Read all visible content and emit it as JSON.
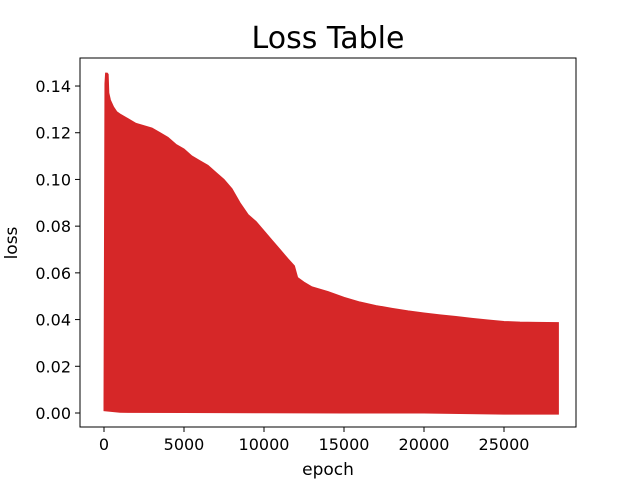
{
  "chart_data": {
    "type": "area",
    "title": "Loss Table",
    "xlabel": "epoch",
    "ylabel": "loss",
    "xlim": [
      -1500,
      29500
    ],
    "ylim": [
      -0.006,
      0.152
    ],
    "xticks": [
      "0",
      "5000",
      "10000",
      "15000",
      "20000",
      "25000"
    ],
    "xtick_values": [
      0,
      5000,
      10000,
      15000,
      20000,
      25000
    ],
    "yticks": [
      "0.00",
      "0.02",
      "0.04",
      "0.06",
      "0.08",
      "0.10",
      "0.12",
      "0.14"
    ],
    "ytick_values": [
      0.0,
      0.02,
      0.04,
      0.06,
      0.08,
      0.1,
      0.12,
      0.14
    ],
    "grid": false,
    "series": [
      {
        "color": "#d62728",
        "upper": {
          "x": [
            0,
            30,
            60,
            100,
            150,
            200,
            260,
            300,
            400,
            600,
            800,
            1000,
            1500,
            2000,
            2500,
            3000,
            3500,
            4000,
            4500,
            5000,
            5500,
            6000,
            6500,
            7000,
            7500,
            8000,
            8500,
            9000,
            9500,
            10000,
            10500,
            11000,
            11500,
            11900,
            12100,
            12500,
            13000,
            14000,
            15000,
            16000,
            17000,
            18000,
            19000,
            20000,
            21000,
            22000,
            23000,
            24000,
            25000,
            26000,
            27000,
            28400
          ],
          "y": [
            0.004,
            0.07,
            0.141,
            0.1455,
            0.1455,
            0.1455,
            0.145,
            0.137,
            0.134,
            0.131,
            0.129,
            0.128,
            0.126,
            0.124,
            0.123,
            0.122,
            0.12,
            0.118,
            0.115,
            0.113,
            0.11,
            0.108,
            0.106,
            0.103,
            0.1,
            0.096,
            0.09,
            0.085,
            0.082,
            0.078,
            0.074,
            0.07,
            0.066,
            0.063,
            0.058,
            0.056,
            0.054,
            0.052,
            0.0495,
            0.0475,
            0.046,
            0.0448,
            0.0437,
            0.0428,
            0.042,
            0.0413,
            0.0405,
            0.0398,
            0.0392,
            0.0389,
            0.0388,
            0.0387
          ]
        },
        "lower": {
          "x": [
            0,
            1000,
            5000,
            10000,
            15000,
            20000,
            25000,
            28400
          ],
          "y": [
            0.001,
            0.0003,
            0.0002,
            0.0001,
            0.0,
            0.0,
            -0.0005,
            -0.0005
          ]
        }
      }
    ]
  }
}
